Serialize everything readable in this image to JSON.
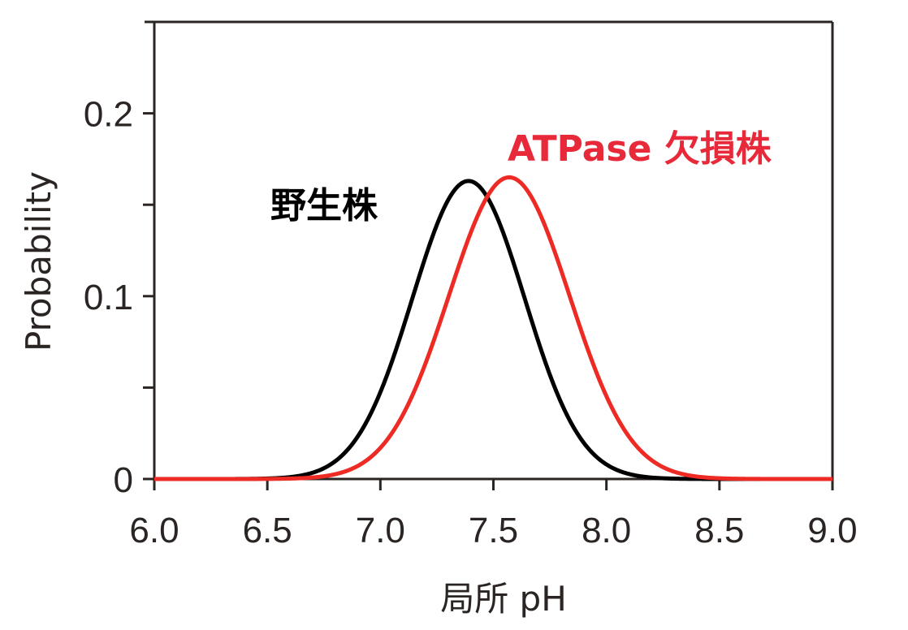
{
  "chart_data": {
    "type": "line",
    "title": "",
    "xlabel": "局所 pH",
    "ylabel": "Probability",
    "xlim": [
      6.0,
      9.0
    ],
    "ylim": [
      0,
      0.25
    ],
    "x_ticks": [
      "6.0",
      "6.5",
      "7.0",
      "7.5",
      "8.0",
      "8.5",
      "9.0"
    ],
    "y_ticks": [
      "0",
      "0.1",
      "0.2"
    ],
    "y_minor_ticks": [
      0.05,
      0.15
    ],
    "grid": false,
    "legend_position": "inline annotations",
    "series": [
      {
        "name": "野生株",
        "color": "#000000",
        "peak_x": 7.39,
        "peak_y": 0.163,
        "x": [
          6.0,
          6.2,
          6.4,
          6.6,
          6.8,
          6.9,
          7.0,
          7.1,
          7.2,
          7.3,
          7.39,
          7.5,
          7.6,
          7.7,
          7.8,
          7.9,
          8.0,
          8.1,
          8.2,
          8.4,
          8.6,
          9.0
        ],
        "values": [
          0.0,
          0.0,
          0.0005,
          0.002,
          0.011,
          0.024,
          0.045,
          0.076,
          0.113,
          0.147,
          0.163,
          0.149,
          0.117,
          0.081,
          0.049,
          0.026,
          0.012,
          0.005,
          0.002,
          0.0,
          0.0,
          0.0
        ]
      },
      {
        "name": "ATPase 欠損株",
        "color": "#ee2a24",
        "peak_x": 7.57,
        "peak_y": 0.165,
        "x": [
          6.0,
          6.4,
          6.6,
          6.8,
          7.0,
          7.1,
          7.2,
          7.3,
          7.4,
          7.5,
          7.57,
          7.7,
          7.8,
          7.9,
          8.0,
          8.1,
          8.2,
          8.3,
          8.4,
          8.6,
          9.0
        ],
        "values": [
          0.0,
          0.0,
          0.0005,
          0.003,
          0.017,
          0.036,
          0.065,
          0.101,
          0.137,
          0.16,
          0.165,
          0.143,
          0.111,
          0.076,
          0.045,
          0.023,
          0.01,
          0.004,
          0.001,
          0.0,
          0.0
        ]
      }
    ]
  },
  "labels": {
    "wild_type": "野生株",
    "mutant": "ATPase 欠損株",
    "xlabel": "局所 pH",
    "ylabel": "Probability"
  },
  "colors": {
    "axis": "#2a2523",
    "wild_type": "#000000",
    "mutant": "#ee2a24",
    "mutant_label": "#e8293a"
  }
}
